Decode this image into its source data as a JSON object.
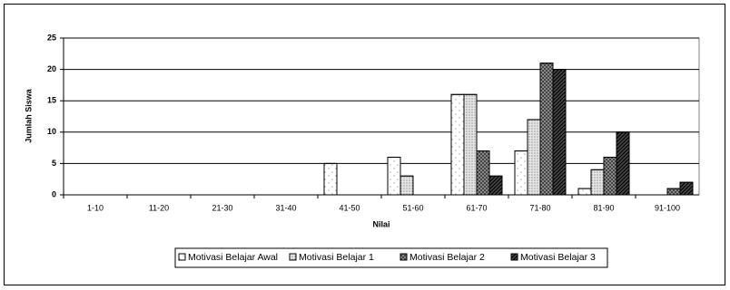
{
  "chart_data": {
    "type": "bar",
    "y_label": "Jumlah Siswa",
    "x_label": "Nilai",
    "categories": [
      "1-10",
      "11-20",
      "21-30",
      "31-40",
      "41-50",
      "51-60",
      "61-70",
      "71-80",
      "81-90",
      "91-100"
    ],
    "series": [
      {
        "name": "Motivasi Belajar Awal",
        "color": "#ffffff",
        "values": [
          0,
          0,
          0,
          0,
          5,
          6,
          16,
          7,
          1,
          0
        ]
      },
      {
        "name": "Motivasi Belajar 1",
        "color": "#e6e6e6",
        "values": [
          0,
          0,
          0,
          0,
          0,
          3,
          16,
          12,
          4,
          0
        ]
      },
      {
        "name": "Motivasi Belajar 2",
        "color": "#9a9a9a",
        "values": [
          0,
          0,
          0,
          0,
          0,
          0,
          7,
          21,
          6,
          1
        ]
      },
      {
        "name": "Motivasi Belajar 3",
        "color": "#4a4a4a",
        "values": [
          0,
          0,
          0,
          0,
          0,
          0,
          3,
          20,
          10,
          2
        ]
      }
    ],
    "ylim": [
      0,
      25
    ],
    "yticks": [
      0,
      5,
      10,
      15,
      20,
      25
    ],
    "grid": true,
    "legend": "bottom"
  }
}
